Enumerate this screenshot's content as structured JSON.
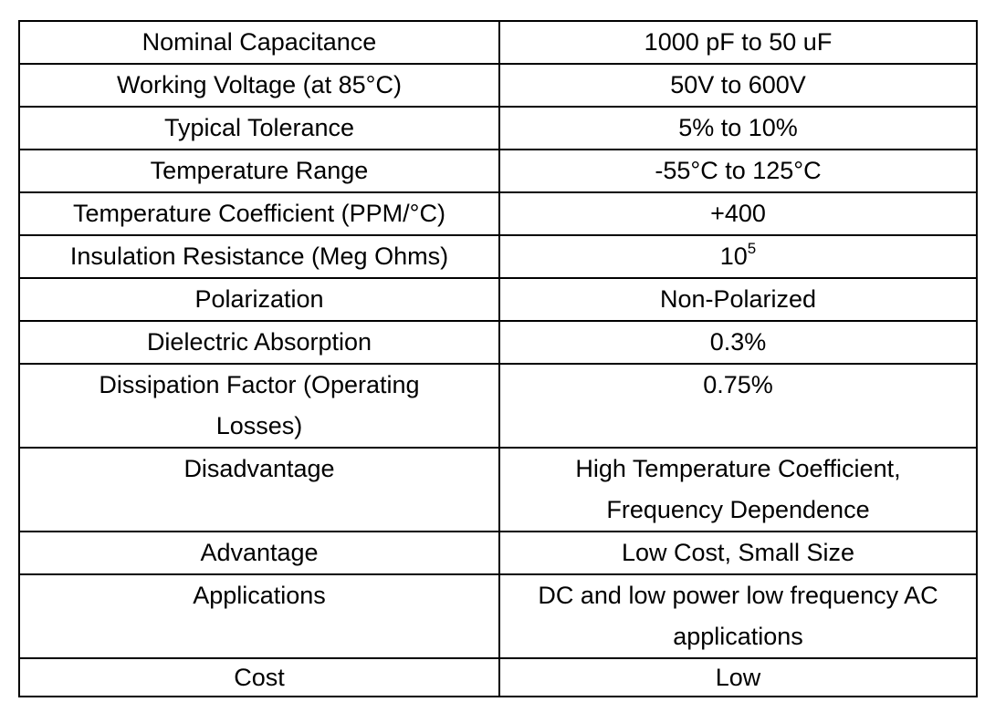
{
  "table": {
    "rows": [
      [
        "Nominal Capacitance",
        "1000 pF to 50 uF"
      ],
      [
        "Working Voltage (at 85°C)",
        "50V to 600V"
      ],
      [
        "Typical Tolerance",
        "5% to 10%"
      ],
      [
        "Temperature Range",
        "-55°C to 125°C"
      ],
      [
        "Temperature Coefficient (PPM/°C)",
        "+400"
      ],
      [
        "Insulation Resistance (Meg Ohms)",
        {
          "text": "10",
          "superscript": "5"
        }
      ],
      [
        "Polarization",
        "Non-Polarized"
      ],
      [
        "Dielectric Absorption",
        "0.3%"
      ],
      [
        "Dissipation Factor (Operating Losses)",
        "0.75%"
      ],
      [
        "Disadvantage",
        "High Temperature Coefficient, Frequency Dependence"
      ],
      [
        "Advantage",
        "Low Cost, Small Size"
      ],
      [
        "Applications",
        "DC and low power low frequency AC applications"
      ],
      [
        "Cost",
        "Low"
      ]
    ]
  }
}
